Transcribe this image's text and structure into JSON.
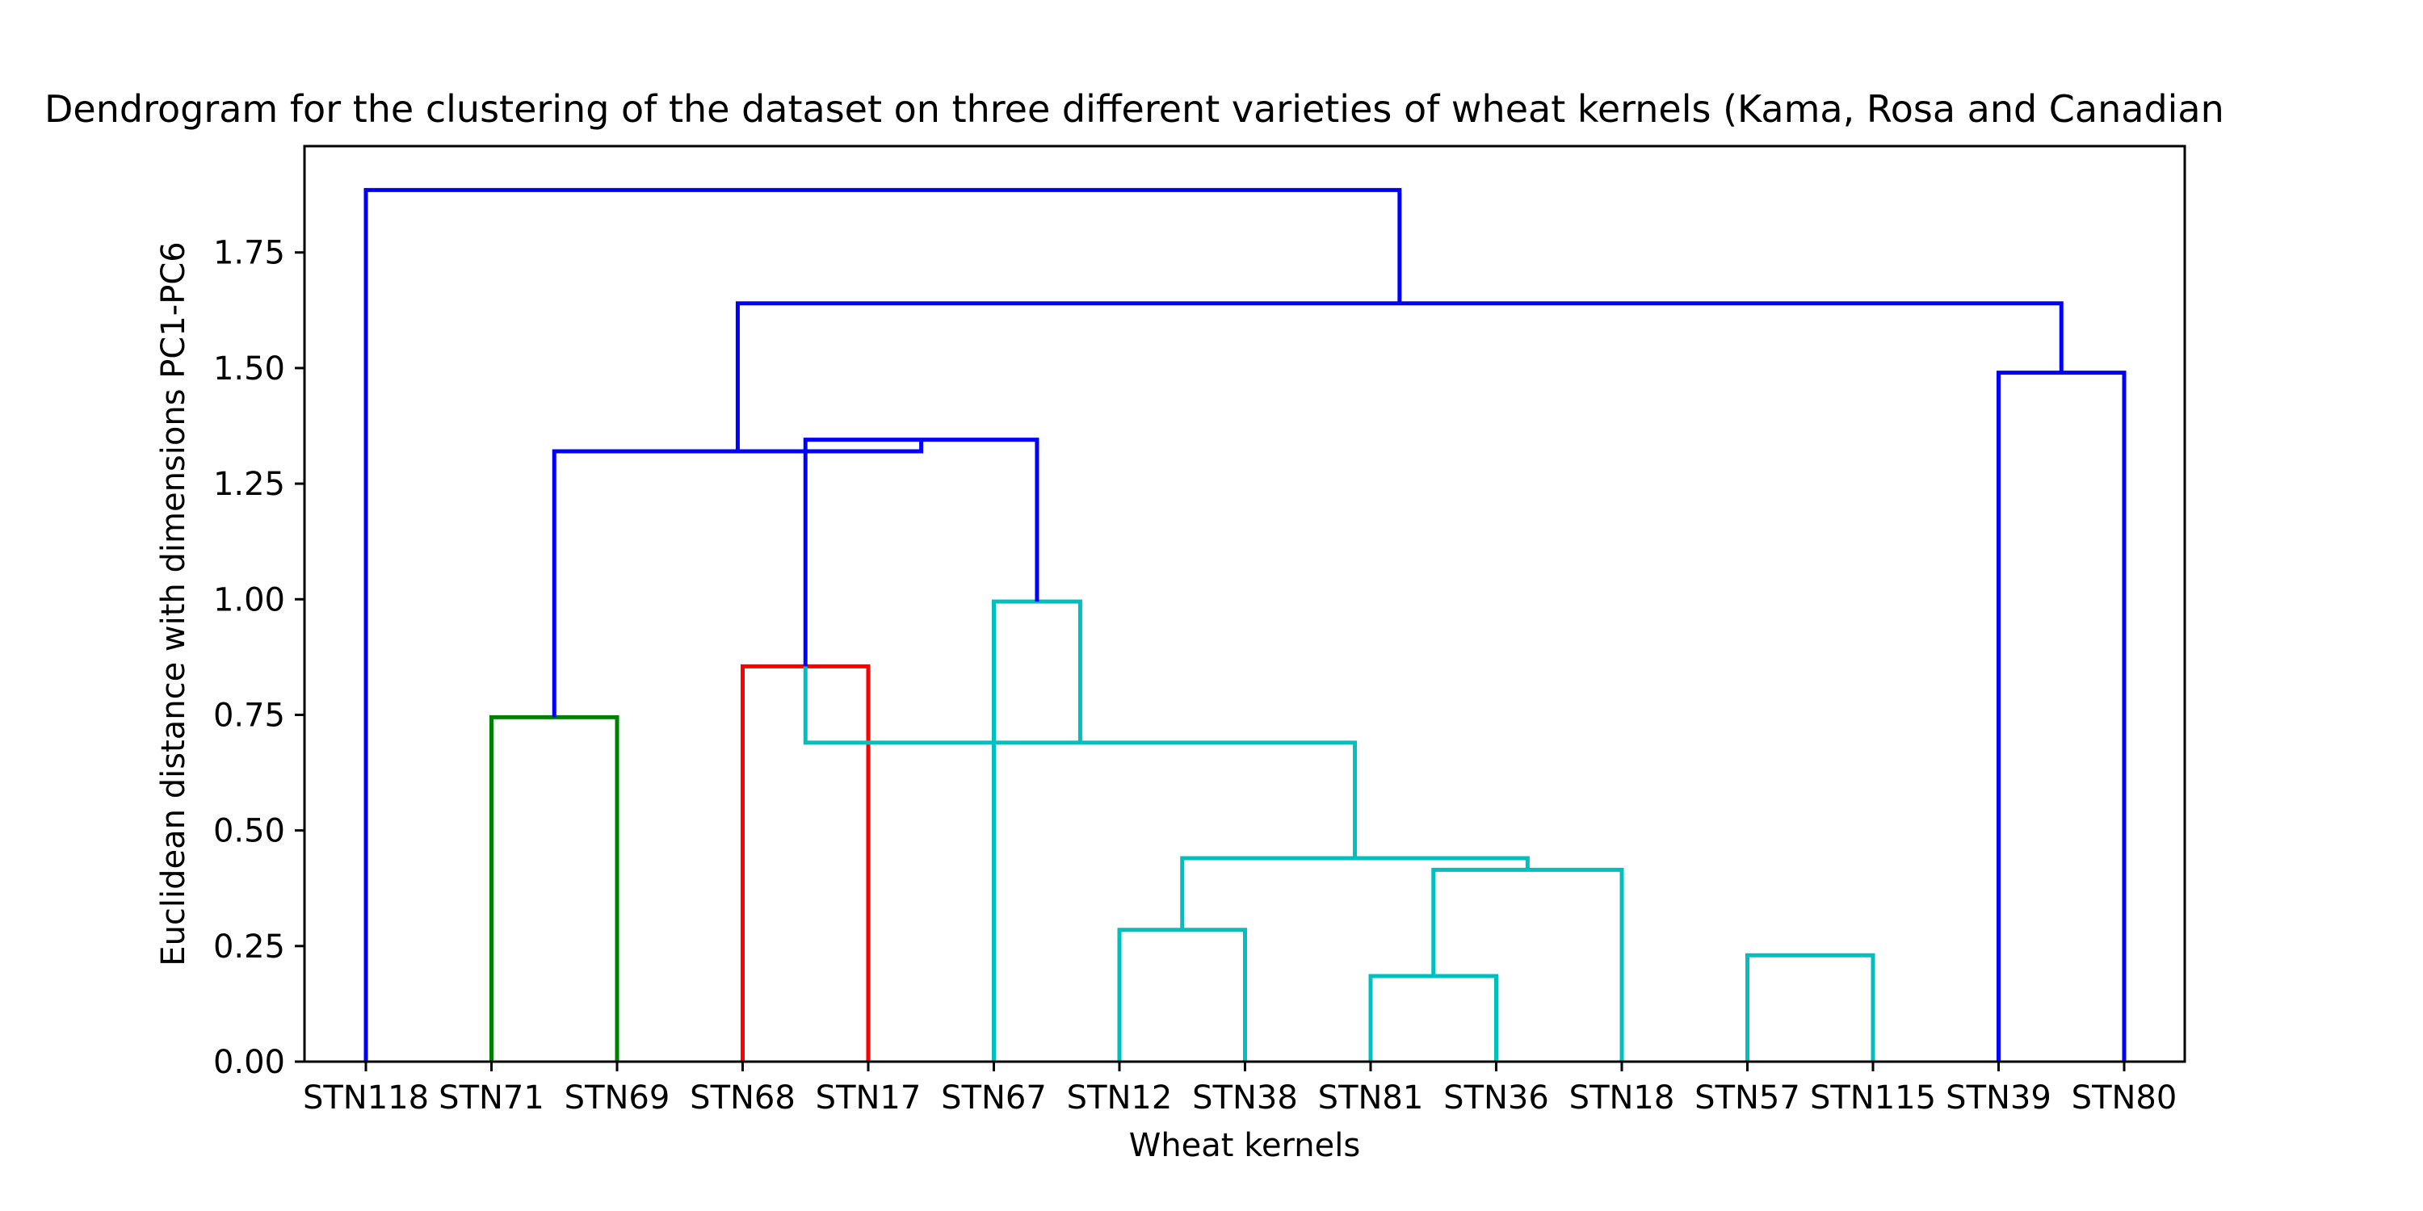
{
  "chart_data": {
    "type": "dendrogram",
    "title": "Dendrogram for the clustering of the dataset on three different varieties of wheat kernels (Kama, Rosa and Canadian",
    "xlabel": "Wheat kernels",
    "ylabel": "Euclidean distance with dimensions PC1-PC6",
    "ylim": [
      0,
      1.98
    ],
    "yticks": [
      "0.00",
      "0.25",
      "0.50",
      "0.75",
      "1.00",
      "1.25",
      "1.50",
      "1.75"
    ],
    "leaves": [
      "STN118",
      "STN71",
      "STN69",
      "STN68",
      "STN17",
      "STN67",
      "STN12",
      "STN38",
      "STN81",
      "STN36",
      "STN18",
      "STN57",
      "STN115",
      "STN39",
      "STN80"
    ],
    "links": [
      {
        "left": 1,
        "right": 2,
        "height": 0.745,
        "color": "#008000"
      },
      {
        "left": 3,
        "right": 4,
        "height": 0.855,
        "color": "#ff0000"
      },
      {
        "left": 6,
        "right": 7,
        "height": 0.285,
        "color": "#00bfbf"
      },
      {
        "left": 8,
        "right": 9,
        "height": 0.185,
        "color": "#00bfbf"
      },
      {
        "left": 11,
        "right": 12,
        "height": 0.23,
        "color": "#00bfbf"
      },
      {
        "left": 10,
        "right": 18,
        "height": 0.415,
        "color": "#00bfbf"
      },
      {
        "left": 17,
        "right": 20,
        "height": 0.44,
        "color": "#00bfbf"
      },
      {
        "left": 16,
        "right": 21,
        "height": 0.69,
        "color": "#00bfbf"
      },
      {
        "left": 5,
        "right": 22,
        "height": 0.995,
        "color": "#00bfbf"
      },
      {
        "left": 13,
        "right": 14,
        "height": 1.49,
        "color": "#0000ff"
      },
      {
        "left": 16,
        "right": 23,
        "height": 1.345,
        "color": "#0000ff"
      },
      {
        "left": 15,
        "right": 25,
        "height": 1.32,
        "color": "#0000ff"
      },
      {
        "left": 26,
        "right": 24,
        "height": 1.64,
        "color": "#0000ff"
      },
      {
        "left": 0,
        "right": 27,
        "height": 1.885,
        "color": "#0000ff"
      }
    ]
  }
}
